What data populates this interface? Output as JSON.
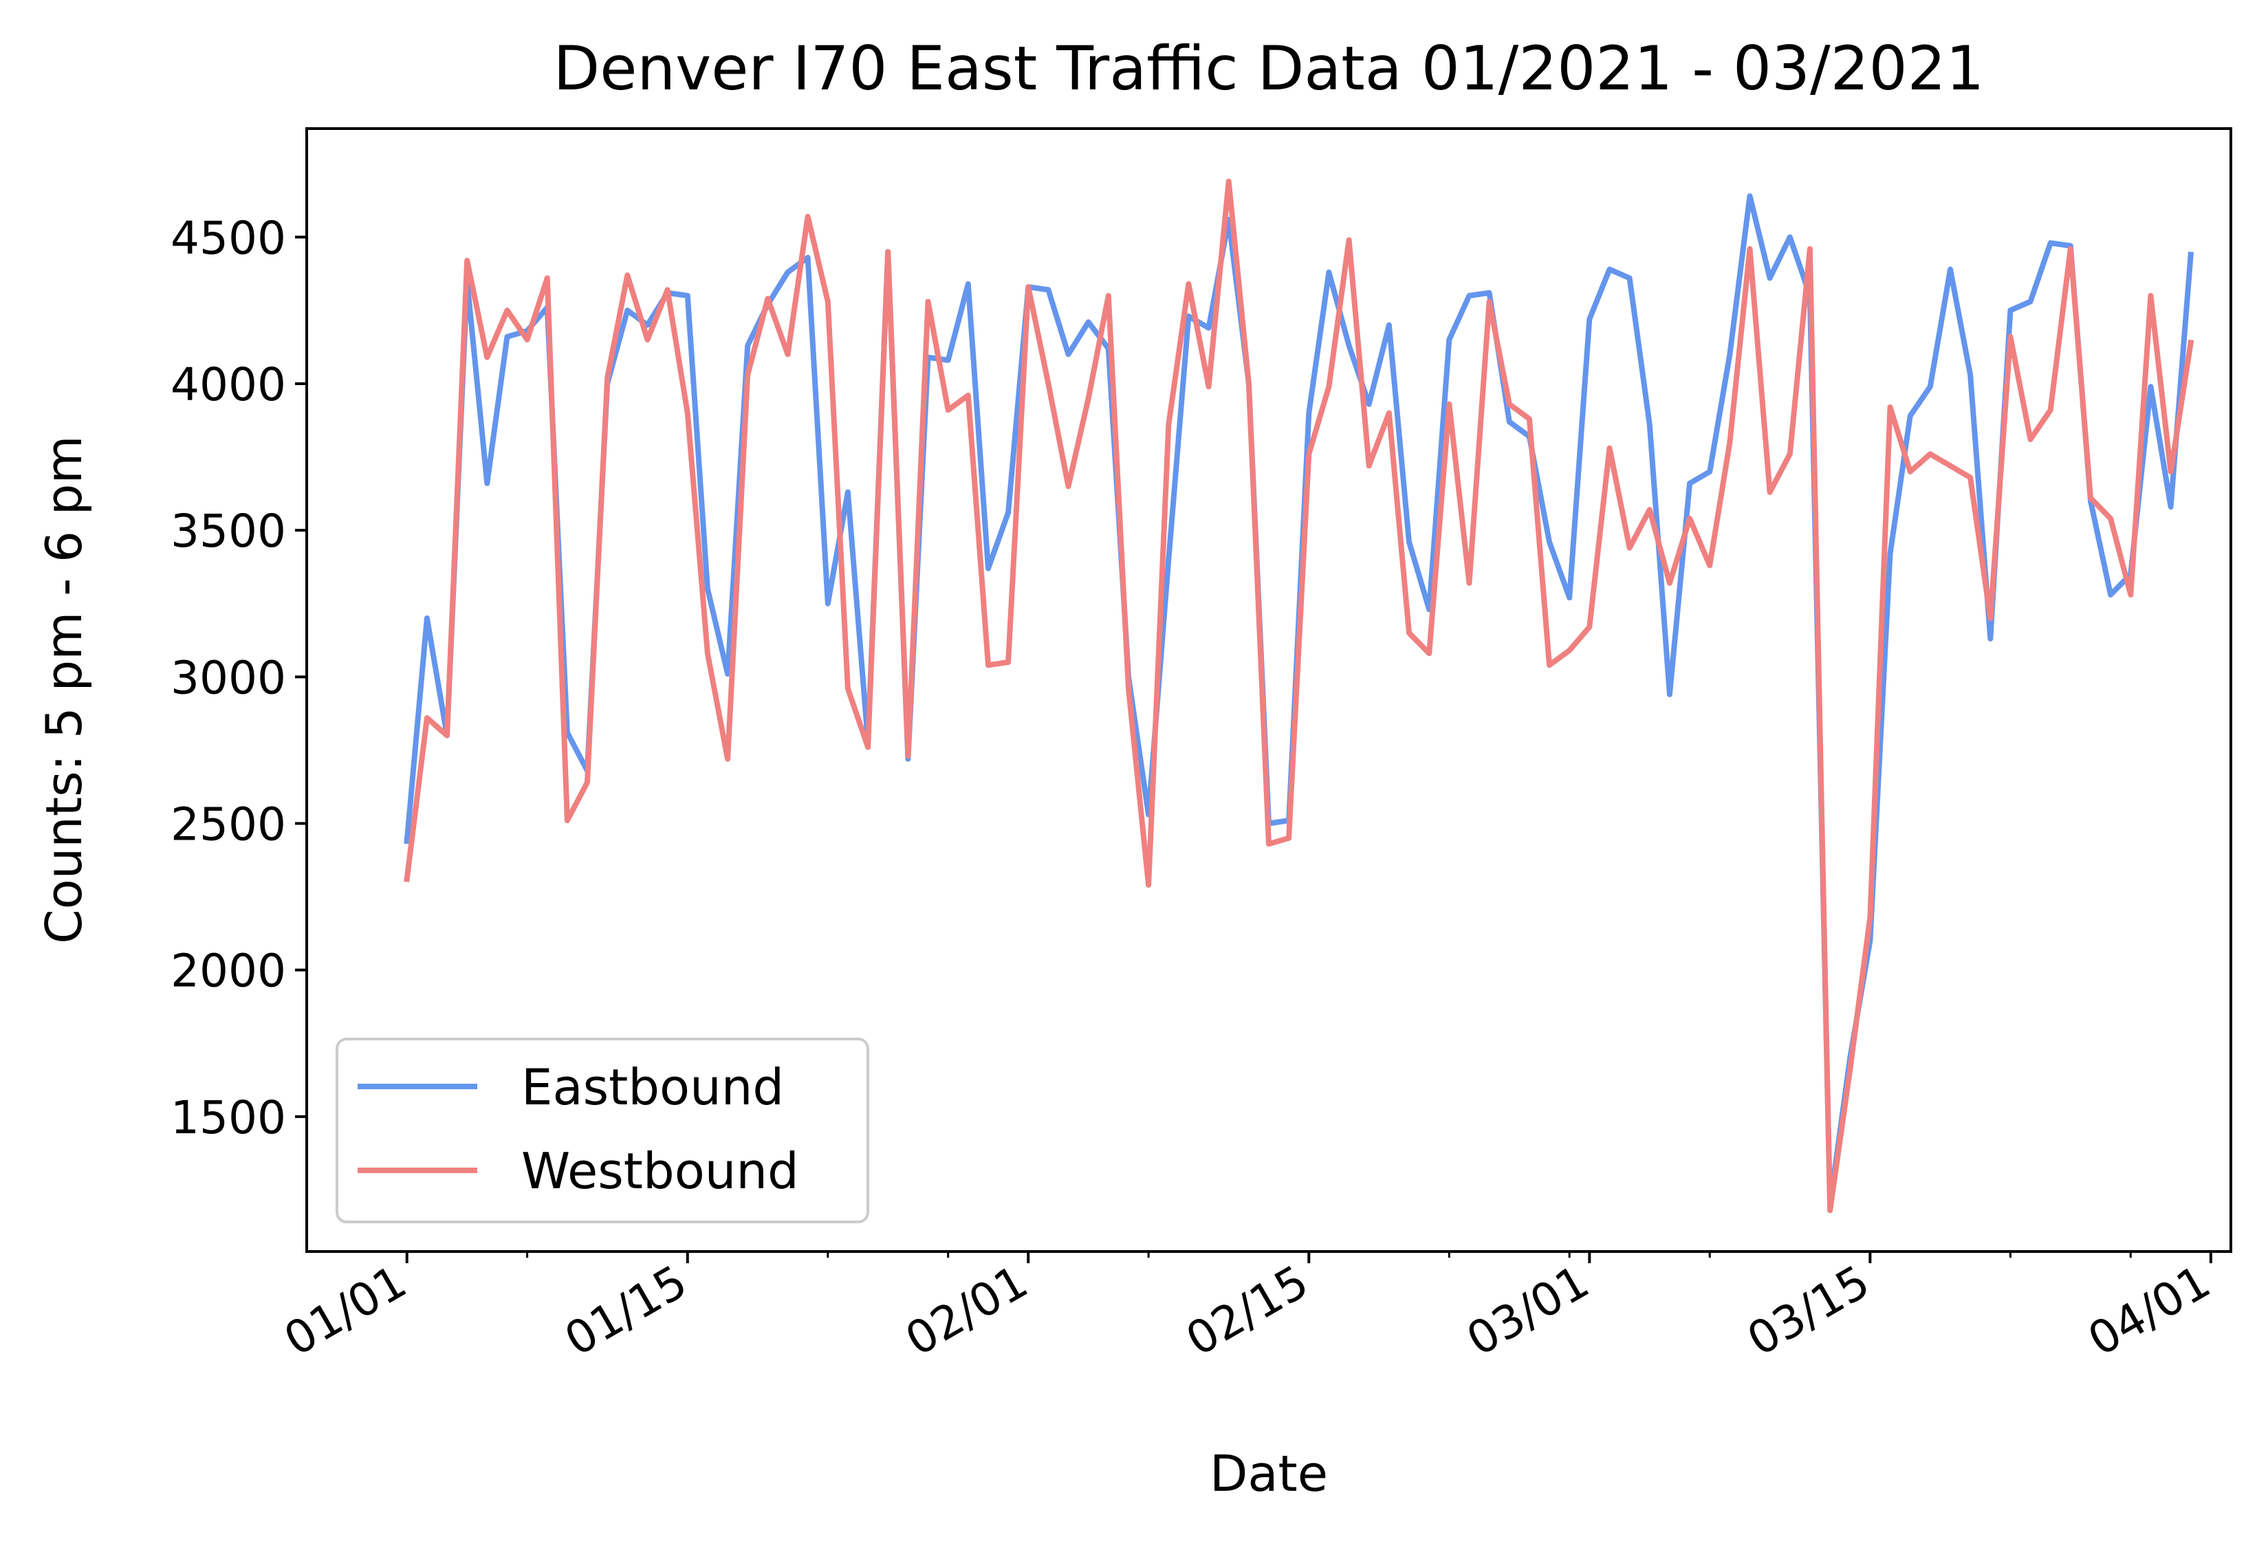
{
  "chart_data": {
    "type": "line",
    "title": "Denver I70 East Traffic Data 01/2021 - 03/2021",
    "xlabel": "Date",
    "ylabel": "Counts: 5 pm - 6 pm",
    "x_start": "2021-01-01",
    "x_range": [
      "2020-12-27",
      "2021-04-02"
    ],
    "ylim": [
      1040,
      4870
    ],
    "yticks": [
      1500,
      2000,
      2500,
      3000,
      3500,
      4000,
      4500
    ],
    "xticks": [
      {
        "date": "2021-01-01",
        "label": "01/01"
      },
      {
        "date": "2021-01-15",
        "label": "01/15"
      },
      {
        "date": "2021-02-01",
        "label": "02/01"
      },
      {
        "date": "2021-02-15",
        "label": "02/15"
      },
      {
        "date": "2021-03-01",
        "label": "03/01"
      },
      {
        "date": "2021-03-15",
        "label": "03/15"
      },
      {
        "date": "2021-04-01",
        "label": "04/01"
      }
    ],
    "minor_xticks": [
      "2021-01-07",
      "2021-01-22",
      "2021-01-28",
      "2021-02-07",
      "2021-02-22",
      "2021-02-28",
      "2021-03-07",
      "2021-03-22",
      "2021-03-28"
    ],
    "grid": false,
    "legend_position": "lower-left",
    "series": [
      {
        "name": "Eastbound",
        "color": "#6495ED",
        "values": [
          2440,
          3200,
          2800,
          4350,
          3660,
          4160,
          4180,
          4260,
          2810,
          2680,
          4000,
          4250,
          4200,
          4310,
          4300,
          3300,
          3010,
          4130,
          4270,
          4380,
          4430,
          3250,
          3630,
          2780,
          4450,
          2720,
          4090,
          4080,
          4340,
          3370,
          3560,
          4330,
          4320,
          4100,
          4210,
          4120,
          3000,
          2530,
          3400,
          4230,
          4190,
          4560,
          4000,
          2500,
          2510,
          3900,
          4380,
          4130,
          3930,
          4200,
          3460,
          3230,
          4150,
          4300,
          4310,
          3870,
          3820,
          3460,
          3270,
          4220,
          4390,
          4360,
          3860,
          2940,
          3660,
          3700,
          4100,
          4640,
          4360,
          4500,
          4300,
          1200,
          1700,
          2100,
          3420,
          3890,
          3990,
          4390,
          4030,
          3130,
          4250,
          4280,
          4480,
          4470,
          3600,
          3280,
          3350,
          3990,
          3580,
          4440
        ]
      },
      {
        "name": "Westbound",
        "color": "#F08080",
        "values": [
          2310,
          2860,
          2800,
          4420,
          4090,
          4250,
          4150,
          4360,
          2510,
          2640,
          4020,
          4370,
          4150,
          4320,
          3900,
          3080,
          2720,
          4030,
          4290,
          4100,
          4570,
          4280,
          2960,
          2760,
          4450,
          2730,
          4280,
          3910,
          3960,
          3040,
          3050,
          4330,
          4000,
          3650,
          3950,
          4300,
          2960,
          2290,
          3860,
          4340,
          3990,
          4690,
          4000,
          2430,
          2450,
          3760,
          3990,
          4490,
          3720,
          3900,
          3150,
          3080,
          3930,
          3320,
          4280,
          3930,
          3880,
          3040,
          3090,
          3170,
          3780,
          3440,
          3570,
          3320,
          3540,
          3380,
          3800,
          4460,
          3630,
          3760,
          4460,
          1180,
          1660,
          2180,
          3920,
          3700,
          3760,
          3720,
          3680,
          3200,
          4160,
          3810,
          3910,
          4460,
          3610,
          3540,
          3280,
          4300,
          3700,
          4140
        ]
      }
    ]
  }
}
